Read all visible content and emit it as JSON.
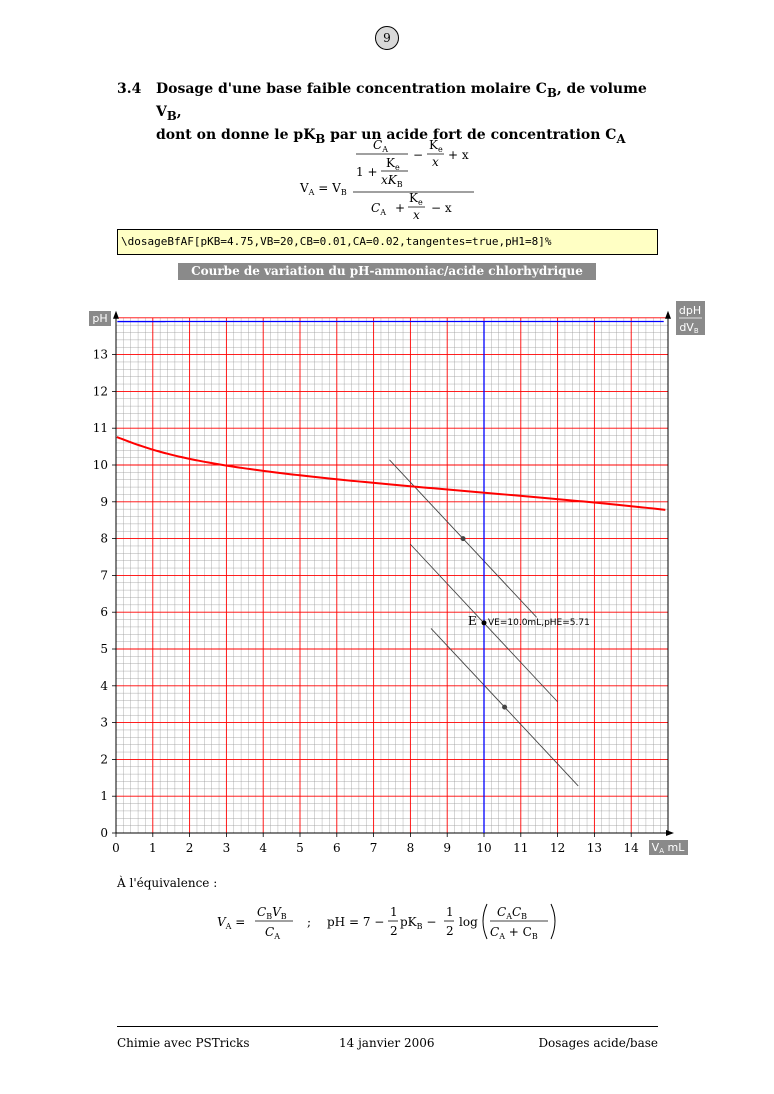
{
  "page_number": "9",
  "section": {
    "number": "3.4",
    "title_line1": "Dosage d'une base faible concentration molaire C",
    "title_line1_sub": "B",
    "title_line1_b": ", de volume V",
    "title_line1_b_sub": "B",
    "title_line1_end": ",",
    "title_line2": "dont on donne le pK",
    "title_line2_sub": "B",
    "title_line2_b": " par un acide fort de concentration C",
    "title_line2_b_sub": "A"
  },
  "formula_va": {
    "lhs": "V",
    "lhs_sub": "A",
    "eq": " = V",
    "eq_sub": "B",
    "ca": "C",
    "ca_sub": "A",
    "one_plus": "1 + ",
    "ke": "K",
    "ke_sub": "e",
    "xkb": "xK",
    "xkb_sub": "B",
    "minus": "−",
    "x": "x",
    "plus_x": "+ x",
    "plus": "+",
    "minus_x": "− x"
  },
  "code": "\\dosageBfAF[pKB=4.75,VB=20,CB=0.01,CA=0.02,tangentes=true,pH1=8]%",
  "chart_title": "Courbe de variation du pH-ammoniac/acide chlorhydrique",
  "chart_data": {
    "type": "line",
    "xlabel": "V",
    "xlabel_sub": "A",
    "xlabel_unit": "mL",
    "ylabel": "pH",
    "y2label_top": "dpH",
    "y2label_bottom": "dV",
    "y2label_bottom_sub": "B",
    "xlim": [
      0,
      15
    ],
    "ylim": [
      0,
      14
    ],
    "x_ticks": [
      "0",
      "1",
      "2",
      "3",
      "4",
      "5",
      "6",
      "7",
      "8",
      "9",
      "10",
      "11",
      "12",
      "13",
      "14"
    ],
    "y_ticks": [
      "0",
      "1",
      "2",
      "3",
      "4",
      "5",
      "6",
      "7",
      "8",
      "9",
      "10",
      "11",
      "12",
      "13"
    ],
    "grid": true,
    "params": {
      "pKB": 4.75,
      "VB": 20,
      "CB": 0.01,
      "CA": 0.02
    },
    "equivalence": {
      "VE": 10.0,
      "pHE": 5.71,
      "label": "E",
      "annotation": "VE=10.0mL,pHE=5.71"
    },
    "tangent_points": [
      {
        "x": 9.43,
        "pH": 8.0
      },
      {
        "x": 10.56,
        "pH": 3.42
      }
    ],
    "colors": {
      "ph_curve": "#ff0000",
      "derivative": "#0000ff",
      "major_grid": "#ff0000",
      "minor_grid": "#999999",
      "tangent": "#444444"
    }
  },
  "equivalence_text": "À l'équivalence :",
  "eq_formula": {
    "va": "V",
    "va_sub": "A",
    "equals": " = ",
    "cb": "C",
    "cb_sub": "B",
    "vb": "V",
    "vb_sub": "B",
    "ca": "C",
    "ca_sub": "A",
    "sep": ";",
    "ph": "pH = 7 − ",
    "one": "1",
    "two": "2",
    "pkb": "pK",
    "pkb_sub": "B",
    "minus": " − ",
    "log": "log",
    "cacb": "C",
    "cacb_sub1": "A",
    "cacb2": "C",
    "cacb_sub2": "B",
    "den": "C",
    "den_sub1": "A",
    "den_plus": " + C",
    "den_sub2": "B"
  },
  "footer": {
    "left": "Chimie avec PSTricks",
    "center": "14 janvier 2006",
    "right": "Dosages acide/base"
  }
}
